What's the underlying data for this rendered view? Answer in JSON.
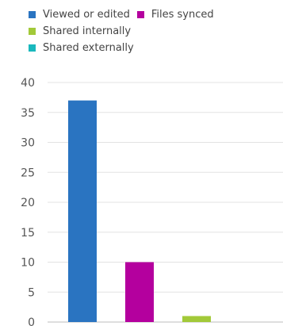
{
  "chart_data": {
    "type": "bar",
    "categories": [
      "Viewed or edited",
      "Files synced",
      "Shared internally",
      "Shared externally"
    ],
    "values": [
      37,
      10,
      1,
      0
    ],
    "colors": [
      "#2a74c1",
      "#b4009e",
      "#a2c939",
      "#19b8bd"
    ],
    "ylim": [
      0,
      40
    ],
    "yticks": [
      "0",
      "5",
      "10",
      "15",
      "20",
      "25",
      "30",
      "35",
      "40"
    ],
    "grid": true,
    "legend_position": "top"
  },
  "legend": [
    {
      "label": "Viewed or edited",
      "color": "#2a74c1",
      "icon": "square-swatch"
    },
    {
      "label": "Files synced",
      "color": "#b4009e",
      "icon": "square-swatch"
    },
    {
      "label": "Shared internally",
      "color": "#a2c939",
      "icon": "square-swatch"
    },
    {
      "label": "Shared externally",
      "color": "#19b8bd",
      "icon": "square-swatch"
    }
  ]
}
